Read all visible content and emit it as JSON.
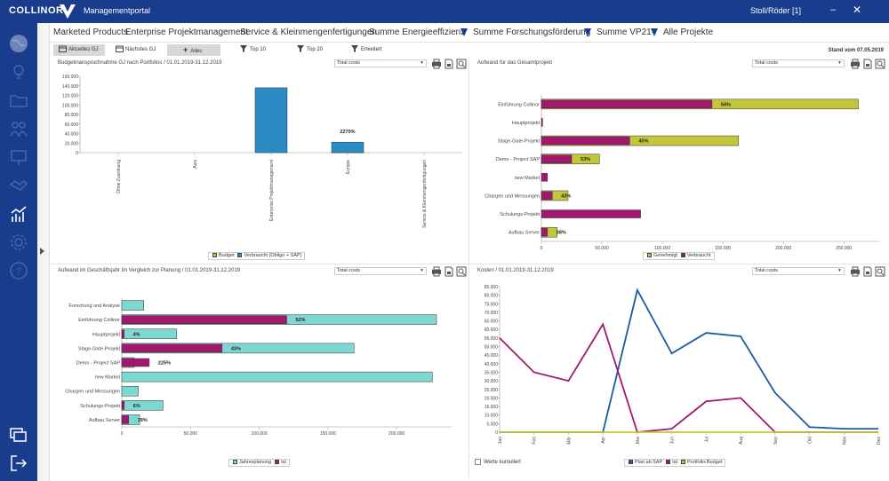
{
  "titlebar": {
    "brand": "COLLINOR",
    "app_title": "Managementportal",
    "user": "Stoll/Röder  [1]",
    "minimize": "–",
    "close": "✕"
  },
  "sidebar": {
    "items": [
      "globe-icon",
      "lightbulb-icon",
      "folder-icon",
      "people-icon",
      "presentation-icon",
      "handshake-icon",
      "chart-icon",
      "settings-icon",
      "help-icon"
    ],
    "bottom": [
      "windows-icon",
      "logout-icon"
    ]
  },
  "tabs": [
    "Marketed Products",
    "Enterprise Projektmanagement",
    "Service & Kleinmengenfertigungen",
    "Summe Energieeffizienz",
    "Summe Forschungsförderung",
    "Summe VP21",
    "Alle Projekte"
  ],
  "filters": {
    "current": "Aktuelles GJ",
    "next": "Nächstes GJ",
    "all": "Alles",
    "top10": "Top 10",
    "top20": "Top 20",
    "extended": "Erweitert",
    "stand": "Stand vom 07.05.2019"
  },
  "colors": {
    "brand": "#1a3c8d",
    "blue": "#2b8cc4",
    "lime": "#c3c63a",
    "magenta": "#a3176e",
    "teal": "#7fd7d4",
    "navy": "#1b5aa3"
  },
  "panels": {
    "p1": {
      "title": "Budgetinanspruchnahme GJ nach Portfolios / 01.01.2019-31.12.2019",
      "select": "Total costs"
    },
    "p2": {
      "title": "Aufwand für das Gesamtprojekt",
      "select": "Total costs"
    },
    "p3": {
      "title": "Aufwand im Geschäftsjahr im Vergleich zur Planung / 01.01.2019-31.12.2019",
      "select": "Total costs"
    },
    "p4": {
      "title": "Kosten / 01.01.2019-31.12.2019",
      "select": "Total costs",
      "checkbox": "Werte kumuliert"
    }
  },
  "chart_data": [
    {
      "type": "bar",
      "categories": [
        "Ohne Zuordnung",
        "Asia",
        "Enterprise Projektmanagement",
        "Europe",
        "Service & Kleinmengenfertigungen"
      ],
      "series": [
        {
          "name": "Budget",
          "values": [
            0,
            0,
            0,
            1000,
            0
          ]
        },
        {
          "name": "Verbraucht (Obligo + SAP)",
          "values": [
            0,
            0,
            136000,
            22000,
            0
          ]
        }
      ],
      "annotations": [
        {
          "category": "Europe",
          "text": "2270%"
        }
      ],
      "yticks": [
        "0",
        "20.000",
        "40.000",
        "60.000",
        "80.000",
        "100.000",
        "120.000",
        "140.000",
        "160.000"
      ],
      "ylim": [
        0,
        160000
      ]
    },
    {
      "type": "bar",
      "categories": [
        "Einführung Collinor",
        "Hauptprojekt",
        "Stage-Gate-Projekt",
        "Demo - Project SAP",
        "new Market",
        "Chargen und Messungen",
        "Schulungs-Projekt",
        "Aufbau Server"
      ],
      "series": [
        {
          "name": "Genehmigt",
          "values": [
            262000,
            0,
            163000,
            48000,
            0,
            22000,
            0,
            13000
          ]
        },
        {
          "name": "Verbraucht",
          "values": [
            141000,
            1000,
            73000,
            25000,
            5000,
            9000,
            82000,
            5000
          ]
        }
      ],
      "labels": [
        "54%",
        "",
        "45%",
        "53%",
        "",
        "43%",
        "",
        "38%"
      ],
      "xticks": [
        "0",
        "50.000",
        "100.000",
        "150.000",
        "200.000",
        "250.000"
      ],
      "xlim": [
        0,
        280000
      ]
    },
    {
      "type": "bar",
      "categories": [
        "Forschung und Analyse",
        "Einführung Collinor",
        "Hauptprojekt",
        "Stage-Gate-Projekt",
        "Demo - Project SAP",
        "new Market",
        "Chargen und Messungen",
        "Schulungs-Projekt",
        "Aufbau Server"
      ],
      "series": [
        {
          "name": "Jahresplanung",
          "values": [
            16000,
            229000,
            40000,
            169000,
            9000,
            226000,
            12000,
            30000,
            13000
          ]
        },
        {
          "name": "Ist",
          "values": [
            0,
            120000,
            1700,
            73000,
            20000,
            0,
            0,
            1800,
            5000
          ]
        }
      ],
      "labels": [
        "",
        "52%",
        "4%",
        "43%",
        "225%",
        "",
        "",
        "6%",
        "39%"
      ],
      "xticks": [
        "0",
        "50.000",
        "100.000",
        "150.000",
        "200.000"
      ],
      "xlim": [
        0,
        240000
      ]
    },
    {
      "type": "line",
      "categories": [
        "Jan",
        "Feb",
        "Mär",
        "Apr",
        "Mai",
        "Jun",
        "Jul",
        "Aug",
        "Sep",
        "Okt",
        "Nov",
        "Dez"
      ],
      "series": [
        {
          "name": "Plan ab SAP",
          "values": [
            0,
            0,
            0,
            0,
            83000,
            46000,
            58000,
            56000,
            23000,
            3000,
            2000,
            2000
          ]
        },
        {
          "name": "Ist",
          "values": [
            55000,
            35000,
            30000,
            63000,
            0,
            2000,
            18000,
            20000,
            0,
            0,
            0,
            0
          ]
        },
        {
          "name": "Portfolio-Budget",
          "values": [
            0,
            0,
            0,
            0,
            0,
            0,
            0,
            0,
            0,
            0,
            0,
            0
          ]
        }
      ],
      "yticks": [
        "0",
        "5.000",
        "10.000",
        "15.000",
        "20.000",
        "25.000",
        "30.000",
        "35.000",
        "40.000",
        "45.000",
        "50.000",
        "55.000",
        "60.000",
        "65.000",
        "70.000",
        "75.000",
        "80.000",
        "85.000"
      ],
      "ylim": [
        0,
        85000
      ]
    }
  ]
}
